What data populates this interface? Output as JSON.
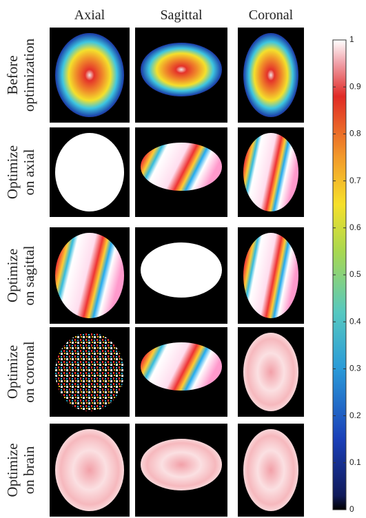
{
  "columns": [
    "Axial",
    "Sagittal",
    "Coronal"
  ],
  "rows": [
    [
      "Before",
      "optimization"
    ],
    [
      "Optimize",
      "on axial"
    ],
    [
      "Optimize",
      "on sagittal"
    ],
    [
      "Optimize",
      "on coronal"
    ],
    [
      "Optimize",
      "on brain"
    ]
  ],
  "colorbar": {
    "lim": [
      0,
      1
    ],
    "ticks": [
      0,
      0.1,
      0.2,
      0.3,
      0.4,
      0.5,
      0.6,
      0.7,
      0.8,
      0.9,
      1
    ]
  }
}
